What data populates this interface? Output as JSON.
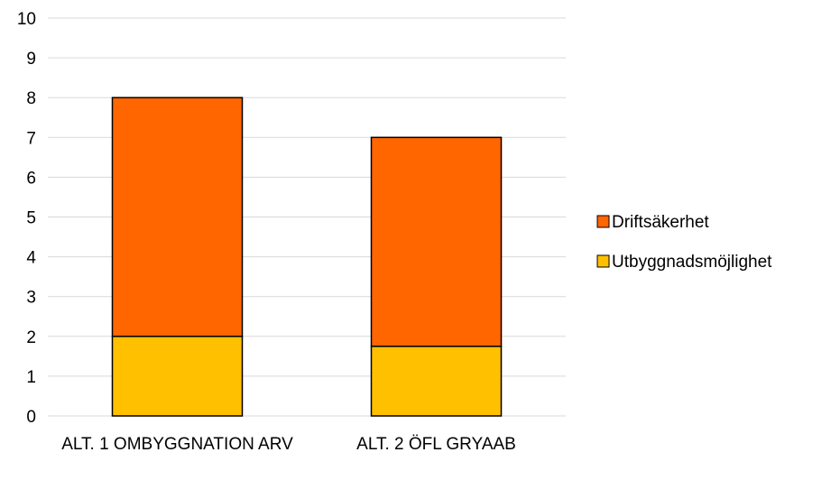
{
  "chart_data": {
    "type": "bar",
    "stacked": true,
    "categories": [
      "ALT. 1 OMBYGGNATION ARV",
      "ALT. 2 ÖFL GRYAAB"
    ],
    "series": [
      {
        "name": "Utbyggnadsmöjlighet",
        "values": [
          2,
          1.75
        ]
      },
      {
        "name": "Driftsäkerhet",
        "values": [
          6,
          5.25
        ]
      }
    ],
    "ylim": [
      0,
      10
    ],
    "yticks": [
      "0",
      "1",
      "2",
      "3",
      "4",
      "5",
      "6",
      "7",
      "8",
      "9",
      "10"
    ],
    "grid": true,
    "legend_position": "right",
    "legend_order": [
      "Driftsäkerhet",
      "Utbyggnadsmöjlighet"
    ],
    "colors": {
      "Utbyggnadsmöjlighet": "#FFC000",
      "Driftsäkerhet": "#FF6600",
      "bar_outline": "#000000",
      "gridline": "#D9D9D9"
    }
  }
}
